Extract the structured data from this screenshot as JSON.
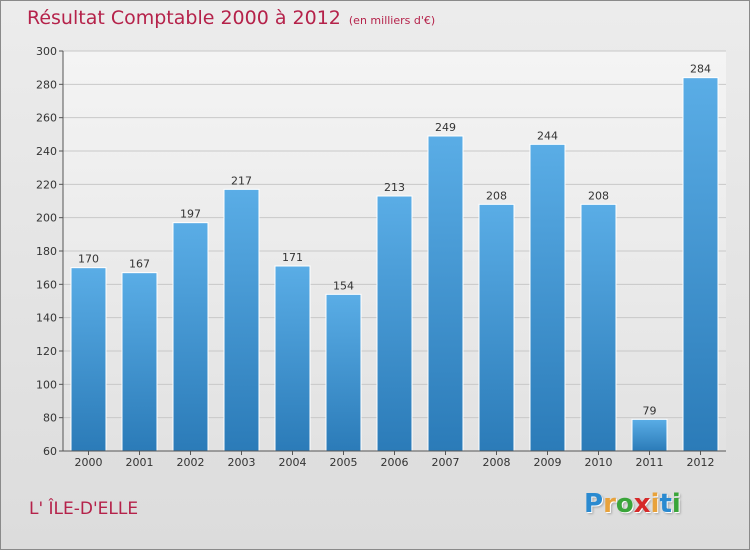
{
  "title": "Résultat Comptable 2000 à 2012",
  "subtitle": "(en milliers d'€)",
  "commune": "L' ÎLE-D'ELLE",
  "logo": {
    "letters": [
      "P",
      "r",
      "o",
      "x",
      "i",
      "t",
      "i"
    ],
    "colors": [
      "#2a8ad0",
      "#e8a23b",
      "#3aa53a",
      "#d62929",
      "#e8a23b",
      "#2a8ad0",
      "#3aa53a"
    ]
  },
  "colors": {
    "accent": "#b5224a",
    "bar_light": "#5aade6",
    "bar_dark": "#2b7bb8"
  },
  "chart_data": {
    "type": "bar",
    "title": "Résultat Comptable 2000 à 2012",
    "xlabel": "",
    "ylabel": "",
    "ylim": [
      60,
      300
    ],
    "yticks": [
      60,
      80,
      100,
      120,
      140,
      160,
      180,
      200,
      220,
      240,
      260,
      280,
      300
    ],
    "grid": true,
    "categories": [
      "2000",
      "2001",
      "2002",
      "2003",
      "2004",
      "2005",
      "2006",
      "2007",
      "2008",
      "2009",
      "2010",
      "2011",
      "2012"
    ],
    "values": [
      170,
      167,
      197,
      217,
      171,
      154,
      213,
      249,
      208,
      244,
      208,
      79,
      284
    ]
  }
}
